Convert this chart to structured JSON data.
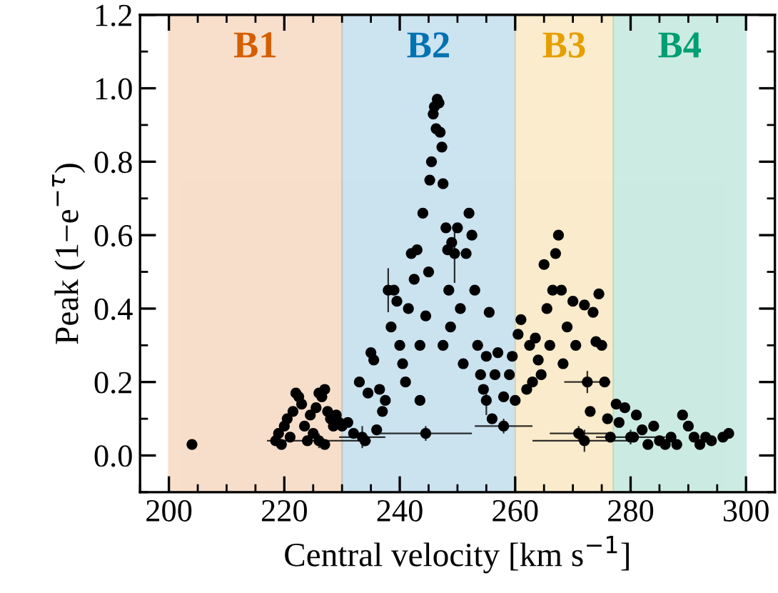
{
  "chart_data": {
    "type": "scatter",
    "xlabel": "Central velocity [km s$^{−1}$]",
    "ylabel": "Peak (1−e$^{−τ}$)",
    "xlim": [
      195,
      305
    ],
    "ylim": [
      -0.1,
      1.2
    ],
    "xticks": [
      200,
      220,
      240,
      260,
      280,
      300
    ],
    "yticks": [
      {
        "value": 0.0,
        "label": "0.0"
      },
      0.2,
      0.4,
      0.6,
      0.8,
      {
        "value": 1.0,
        "label": "1.0"
      },
      1.2
    ],
    "grid": false,
    "marker": "circle",
    "bands": [
      {
        "axis": "x",
        "from": 200,
        "to": 230,
        "label": "B1",
        "color": "#d55e00"
      },
      {
        "axis": "x",
        "from": 230,
        "to": 260,
        "label": "B2",
        "color": "#0072b2"
      },
      {
        "axis": "x",
        "from": 260,
        "to": 277,
        "label": "B3",
        "color": "#e69f00"
      },
      {
        "axis": "x",
        "from": 277,
        "to": 300,
        "label": "B4",
        "color": "#009e73"
      }
    ],
    "series": [
      {
        "color": "#000000",
        "x": [
          204,
          218.5,
          219,
          219.5,
          220,
          220.5,
          221,
          221.5,
          222,
          222.5,
          223,
          223.5,
          224,
          224.5,
          225,
          225.5,
          226,
          226.5,
          227,
          227.5,
          228,
          228.5,
          229,
          229.5,
          227,
          230,
          231,
          232,
          233,
          234,
          234.5,
          235,
          235.5,
          236,
          236.5,
          237,
          237.5,
          238.5,
          239,
          239.5,
          240,
          240.5,
          241,
          241.5,
          242,
          242.5,
          243,
          243.5,
          243.5,
          244,
          244.5,
          245,
          245.2,
          245.5,
          245.8,
          246,
          246.3,
          246.5,
          246.8,
          247,
          247.3,
          247.5,
          247.5,
          248,
          248.3,
          248.5,
          248.8,
          249,
          250,
          250.5,
          251,
          251.5,
          252,
          252.5,
          253,
          253.5,
          254,
          254.5,
          255,
          255.5,
          256,
          256.5,
          257,
          258,
          259,
          259.5,
          260,
          260.5,
          261,
          262,
          262.5,
          263,
          263.5,
          264,
          264.5,
          265,
          265.5,
          266,
          266.5,
          267,
          267.5,
          268,
          268.3,
          269,
          270,
          270.5,
          272,
          273,
          273.5,
          274,
          274.5,
          275,
          275.5,
          276,
          276.5,
          277.5,
          278,
          279,
          280.5,
          281,
          282,
          283,
          284,
          285,
          286,
          287,
          288,
          289,
          290,
          291,
          292,
          293,
          294,
          296,
          297
        ],
        "values": [
          0.03,
          0.04,
          0.06,
          0.03,
          0.08,
          0.1,
          0.05,
          0.12,
          0.17,
          0.16,
          0.14,
          0.08,
          0.04,
          0.11,
          0.06,
          0.13,
          0.17,
          0.16,
          0.18,
          0.12,
          0.1,
          0.08,
          0.11,
          0.09,
          0.03,
          0.08,
          0.09,
          0.06,
          0.2,
          0.04,
          0.17,
          0.28,
          0.26,
          0.07,
          0.18,
          0.12,
          0.15,
          0.35,
          0.45,
          0.42,
          0.3,
          0.25,
          0.2,
          0.4,
          0.55,
          0.48,
          0.56,
          0.3,
          0.15,
          0.66,
          0.38,
          0.5,
          0.75,
          0.8,
          0.93,
          0.95,
          0.89,
          0.97,
          0.96,
          0.88,
          0.84,
          0.74,
          0.3,
          0.62,
          0.56,
          0.45,
          0.35,
          0.58,
          0.62,
          0.4,
          0.25,
          0.55,
          0.66,
          0.6,
          0.45,
          0.3,
          0.22,
          0.18,
          0.27,
          0.39,
          0.1,
          0.22,
          0.28,
          0.16,
          0.22,
          0.27,
          0.15,
          0.33,
          0.37,
          0.18,
          0.3,
          0.2,
          0.32,
          0.26,
          0.22,
          0.52,
          0.4,
          0.3,
          0.45,
          0.55,
          0.6,
          0.45,
          0.25,
          0.35,
          0.42,
          0.3,
          0.41,
          0.12,
          0.39,
          0.31,
          0.44,
          0.3,
          0.2,
          0.1,
          0.05,
          0.14,
          0.09,
          0.13,
          0.05,
          0.11,
          0.07,
          0.03,
          0.08,
          0.04,
          0.03,
          0.05,
          0.03,
          0.11,
          0.08,
          0.05,
          0.03,
          0.05,
          0.04,
          0.05,
          0.06
        ]
      },
      {
        "color": "#000000",
        "x": [
          244.5,
          258,
          233.5,
          226,
          272,
          271,
          280,
          249.5,
          238,
          272.5,
          255
        ],
        "values": [
          0.06,
          0.08,
          0.05,
          0.04,
          0.04,
          0.06,
          0.05,
          0.55,
          0.45,
          0.2,
          0.15
        ],
        "errors": [
          0.02,
          0.02,
          0.03,
          0.02,
          0.03,
          0.02,
          0.02,
          0.08,
          0.06,
          0.03,
          0.04
        ],
        "xerrors": [
          8,
          5,
          4,
          9,
          9,
          5,
          6,
          null,
          null,
          4,
          null
        ]
      }
    ]
  }
}
